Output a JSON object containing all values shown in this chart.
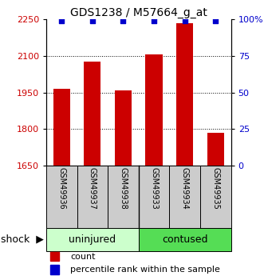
{
  "title": "GDS1238 / M57664_g_at",
  "samples": [
    "GSM49936",
    "GSM49937",
    "GSM49938",
    "GSM49933",
    "GSM49934",
    "GSM49935"
  ],
  "counts": [
    1965,
    2075,
    1960,
    2105,
    2235,
    1785
  ],
  "percentiles": [
    99,
    99,
    99,
    99,
    99,
    99
  ],
  "ylim_left": [
    1650,
    2250
  ],
  "yticks_left": [
    1650,
    1800,
    1950,
    2100,
    2250
  ],
  "yticks_right": [
    0,
    25,
    50,
    75,
    100
  ],
  "grid_lines": [
    1800,
    1950,
    2100
  ],
  "bar_color": "#cc0000",
  "dot_color": "#0000cc",
  "bar_width": 0.55,
  "title_fontsize": 10,
  "tick_fontsize": 8,
  "sample_fontsize": 7,
  "legend_fontsize": 8,
  "group_fontsize": 9,
  "uninjured_color": "#ccffcc",
  "contused_color": "#55dd55",
  "sample_box_color": "#cccccc",
  "n_uninjured": 3,
  "n_contused": 3
}
